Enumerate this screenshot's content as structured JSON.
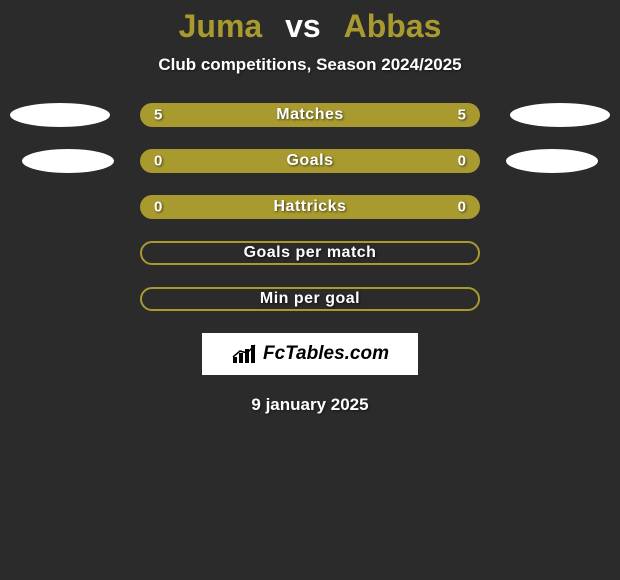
{
  "background_color": "#2b2b2b",
  "title": {
    "player1": "Juma",
    "vs": "vs",
    "player2": "Abbas",
    "player1_color": "#a89a2f",
    "player2_color": "#a89a2f",
    "vs_color": "#ffffff",
    "fontsize": 32,
    "fontweight": 900
  },
  "subtitle": {
    "text": "Club competitions, Season 2024/2025",
    "color": "#ffffff",
    "fontsize": 17
  },
  "rows": [
    {
      "label": "Matches",
      "left_value": "5",
      "right_value": "5",
      "pill_bg": "#a89a2f",
      "left_badge_color": "#ffffff",
      "right_badge_color": "#ffffff",
      "badge_narrow": false,
      "filled": true
    },
    {
      "label": "Goals",
      "left_value": "0",
      "right_value": "0",
      "pill_bg": "#a89a2f",
      "left_badge_color": "#ffffff",
      "right_badge_color": "#ffffff",
      "badge_narrow": true,
      "filled": true
    },
    {
      "label": "Hattricks",
      "left_value": "0",
      "right_value": "0",
      "pill_bg": "#a89a2f",
      "left_badge_color": null,
      "right_badge_color": null,
      "badge_narrow": false,
      "filled": true
    },
    {
      "label": "Goals per match",
      "left_value": "",
      "right_value": "",
      "pill_bg": "#a89a2f",
      "left_badge_color": null,
      "right_badge_color": null,
      "badge_narrow": false,
      "filled": false
    },
    {
      "label": "Min per goal",
      "left_value": "",
      "right_value": "",
      "pill_bg": "#a89a2f",
      "left_badge_color": null,
      "right_badge_color": null,
      "badge_narrow": false,
      "filled": false
    }
  ],
  "brand": {
    "text": "FcTables.com",
    "bg": "#ffffff",
    "text_color": "#000000",
    "fontsize": 19
  },
  "date": {
    "text": "9 january 2025",
    "color": "#ffffff",
    "fontsize": 17
  },
  "styling": {
    "pill_width": 340,
    "pill_height": 24,
    "pill_radius": 12,
    "row_gap": 22,
    "badge_width": 100,
    "badge_narrow_width": 92,
    "label_color": "#ffffff",
    "label_fontsize": 16,
    "value_fontsize": 15
  }
}
